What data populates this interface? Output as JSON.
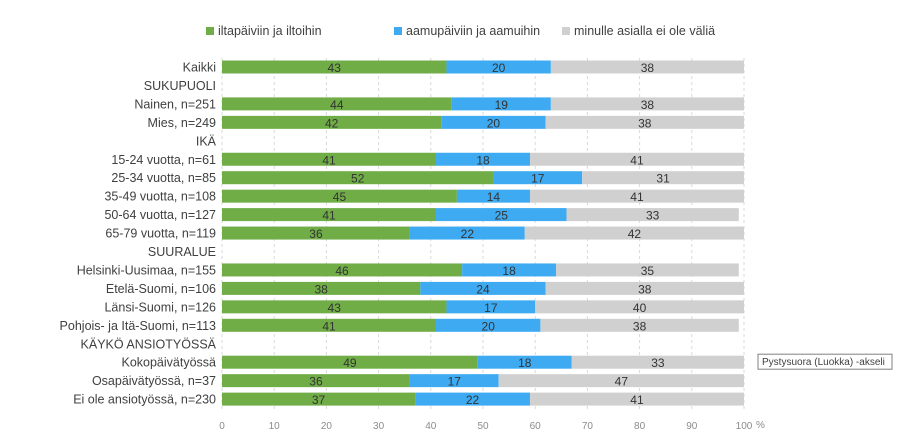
{
  "chart_data": {
    "type": "bar",
    "orientation": "horizontal",
    "stacked": true,
    "categories": [
      "Kaikki",
      "SUKUPUOLI",
      "Nainen, n=251",
      "Mies, n=249",
      "IKÄ",
      "15-24 vuotta, n=61",
      "25-34 vuotta, n=85",
      "35-49 vuotta, n=108",
      "50-64 vuotta, n=127",
      "65-79 vuotta, n=119",
      "SUURALUE",
      "Helsinki-Uusimaa, n=155",
      "Etelä-Suomi, n=106",
      "Länsi-Suomi, n=126",
      "Pohjois- ja Itä-Suomi, n=113",
      "KÄYKÖ ANSIOTYÖSSÄ",
      "Kokopäivätyössä",
      "Osapäivätyössä, n=37",
      "Ei ole ansiotyössä, n=230"
    ],
    "series": [
      {
        "name": "iltapäiviin ja iltoihin",
        "color": "#70AD47",
        "values": [
          43,
          null,
          44,
          42,
          null,
          41,
          52,
          45,
          41,
          36,
          null,
          46,
          38,
          43,
          41,
          null,
          49,
          36,
          37
        ]
      },
      {
        "name": "aamupäiviin ja aamuihin",
        "color": "#3DAAF2",
        "values": [
          20,
          null,
          19,
          20,
          null,
          18,
          17,
          14,
          25,
          22,
          null,
          18,
          24,
          17,
          20,
          null,
          18,
          17,
          22
        ]
      },
      {
        "name": "minulle asialla ei ole väliä",
        "color": "#D0D0D0",
        "values": [
          38,
          null,
          38,
          38,
          null,
          41,
          31,
          41,
          33,
          42,
          null,
          35,
          38,
          40,
          38,
          null,
          33,
          47,
          41
        ]
      }
    ],
    "xlim": [
      0,
      100
    ],
    "xticks": [
      "0",
      "10",
      "20",
      "30",
      "40",
      "50",
      "60",
      "70",
      "80",
      "90",
      "100"
    ],
    "xunit": "%",
    "grid": "vertical dashed",
    "legend": "top"
  },
  "tooltip": {
    "text": "Pystysuora (Luokka)  -akseli"
  }
}
